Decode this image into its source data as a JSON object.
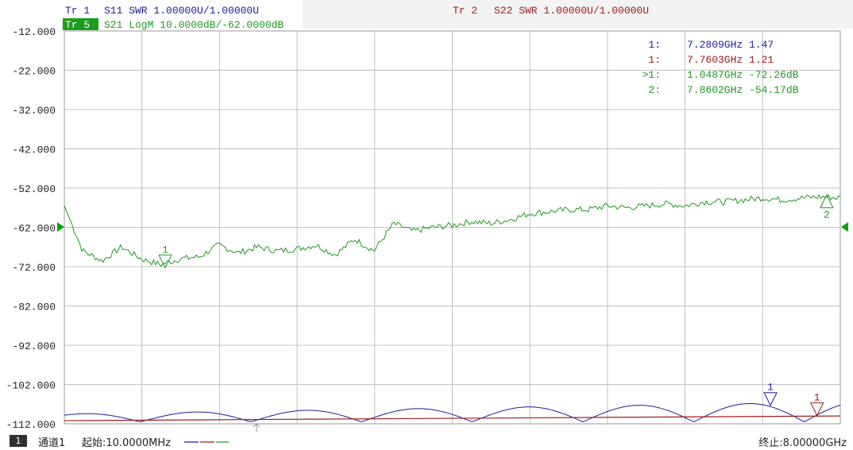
{
  "colors": {
    "green": "#1e9b1e",
    "blue": "#1c1c9c",
    "red": "#a01c1c",
    "grid": "#c0c0c0",
    "axis_text": "#222222",
    "badge_bg": "#1e9b1e",
    "ref_arrow": "#10a010"
  },
  "traces": {
    "tr1": {
      "id": "Tr 1",
      "param": "S11 SWR 1.00000U/1.00000U",
      "color": "#1c1c9c"
    },
    "tr2": {
      "id": "Tr 2",
      "param": "S22 SWR 1.00000U/1.00000U",
      "color": "#a01c1c"
    },
    "tr5": {
      "id": "Tr 5",
      "param": "S21 LogM 10.0000dB/-62.0000dB",
      "color": "#1e9b1e",
      "active": true
    }
  },
  "y_axis": {
    "ticks": [
      "-12.000",
      "-22.000",
      "-32.000",
      "-42.000",
      "-52.000",
      "-62.000",
      "-72.000",
      "-82.000",
      "-92.000",
      "-102.000",
      "-112.000"
    ]
  },
  "marker_table": [
    {
      "idx": "1:",
      "value": "7.2809GHz 1.47",
      "color": "#1c1c9c"
    },
    {
      "idx": "1:",
      "value": "7.7603GHz 1.21",
      "color": "#a01c1c"
    },
    {
      "idx": ">1:",
      "value": "1.0487GHz -72.26dB",
      "color": "#1e9b1e"
    },
    {
      "idx": "2:",
      "value": "7.8602GHz -54.17dB",
      "color": "#1e9b1e"
    }
  ],
  "markers_on_plot": [
    {
      "label": "1",
      "trace": "tr5",
      "freq_ghz": 1.0487,
      "value_db": -72.26,
      "direction": "down"
    },
    {
      "label": "2",
      "trace": "tr5",
      "freq_ghz": 7.8602,
      "value_db": -54.17,
      "direction": "up"
    },
    {
      "label": "1",
      "trace": "tr1",
      "freq_ghz": 7.2809,
      "value_swr": 1.47,
      "direction": "down"
    },
    {
      "label": "1",
      "trace": "tr2",
      "freq_ghz": 7.7603,
      "value_swr": 1.21,
      "direction": "down"
    }
  ],
  "status_bar": {
    "channel_number": "1",
    "channel_label": "通道1",
    "start_label": "起始:10.0000MHz",
    "stop_label": "终止:8.00000GHz"
  },
  "chart_data": {
    "type": "line",
    "x_range_ghz": [
      0.01,
      8.0
    ],
    "ylim": [
      -112,
      -12
    ],
    "grid": true,
    "y_divisions": 10,
    "x_divisions": 10,
    "series": [
      {
        "name": "S21 LogM",
        "x": [
          0.01,
          0.2,
          0.4,
          0.6,
          0.8,
          1.0,
          1.2,
          1.4,
          1.6,
          1.8,
          2.0,
          2.2,
          2.4,
          2.6,
          2.8,
          3.0,
          3.2,
          3.4,
          3.6,
          3.8,
          4.0,
          4.2,
          4.4,
          4.6,
          4.8,
          5.0,
          5.2,
          5.4,
          5.6,
          5.8,
          6.0,
          6.2,
          6.4,
          6.6,
          6.8,
          7.0,
          7.2,
          7.4,
          7.6,
          7.8,
          8.0
        ],
        "y": [
          -56.5,
          -68.0,
          -70.5,
          -67.0,
          -70.0,
          -71.5,
          -70.0,
          -69.5,
          -66.5,
          -68.5,
          -67.0,
          -68.0,
          -67.5,
          -66.5,
          -69.0,
          -65.0,
          -68.0,
          -61.0,
          -63.0,
          -62.0,
          -61.5,
          -60.5,
          -61.0,
          -60.0,
          -58.5,
          -58.0,
          -57.5,
          -57.5,
          -56.5,
          -57.0,
          -56.5,
          -56.0,
          -56.5,
          -55.5,
          -55.5,
          -55.0,
          -54.5,
          -55.0,
          -54.5,
          -54.2,
          -54.5
        ]
      },
      {
        "name": "S11 SWR",
        "period_ghz": 1.14,
        "y_min_swr": 1.0,
        "y_max_swr_start": 1.2,
        "y_max_swr_end": 1.5
      },
      {
        "name": "S22 SWR",
        "x": [
          0.01,
          8.0
        ],
        "y_swr": [
          1.08,
          1.2
        ]
      }
    ]
  }
}
